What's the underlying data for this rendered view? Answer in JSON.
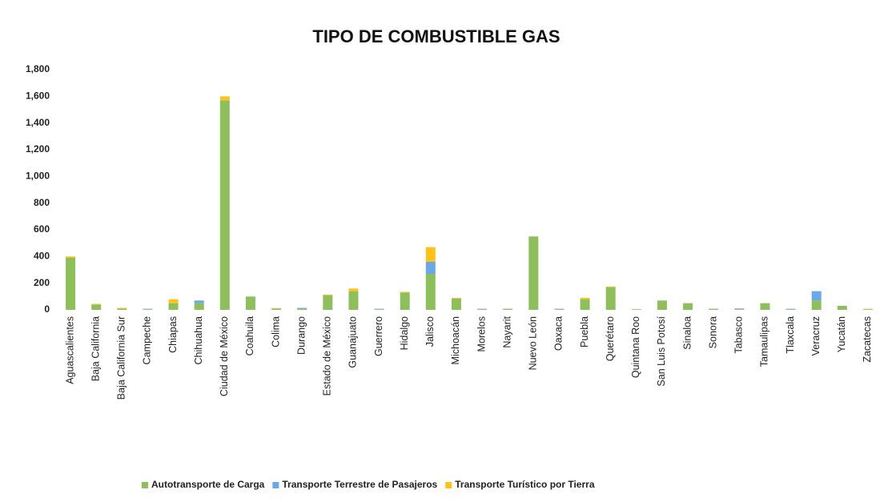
{
  "chart_data": {
    "type": "stacked_bar",
    "title": "TIPO DE COMBUSTIBLE GAS",
    "categories": [
      "Aguascalientes",
      "Baja California",
      "Baja California Sur",
      "Campeche",
      "Chiapas",
      "Chihuahua",
      "Ciudad de México",
      "Coahuila",
      "Colima",
      "Durango",
      "Estado de México",
      "Guanajuato",
      "Guerrero",
      "Hidalgo",
      "Jalisco",
      "Michoacán",
      "Morelos",
      "Nayarit",
      "Nuevo León",
      "Oaxaca",
      "Puebla",
      "Querétaro",
      "Quintana Roo",
      "San Luis Potosí",
      "Sinaloa",
      "Sonora",
      "Tabasco",
      "Tamaulipas",
      "Tlaxcala",
      "Veracruz",
      "Yucatán",
      "Zacatecas"
    ],
    "series": [
      {
        "name": "Autotransporte de Carga",
        "color": "#8dc05a",
        "values": [
          390,
          40,
          10,
          5,
          50,
          50,
          1570,
          100,
          10,
          10,
          110,
          140,
          5,
          130,
          270,
          85,
          5,
          8,
          550,
          5,
          80,
          170,
          5,
          70,
          50,
          8,
          5,
          50,
          5,
          70,
          30,
          5
        ]
      },
      {
        "name": "Transporte Terrestre de Pasajeros",
        "color": "#6aa8e8",
        "values": [
          0,
          0,
          0,
          3,
          0,
          20,
          0,
          0,
          0,
          5,
          0,
          0,
          3,
          0,
          90,
          0,
          3,
          0,
          0,
          3,
          0,
          0,
          0,
          0,
          0,
          0,
          5,
          0,
          3,
          70,
          0,
          0
        ]
      },
      {
        "name": "Transporte Turístico por Tierra",
        "color": "#ffc21a",
        "values": [
          10,
          5,
          5,
          0,
          30,
          0,
          30,
          0,
          3,
          0,
          5,
          20,
          0,
          5,
          110,
          5,
          0,
          0,
          0,
          0,
          10,
          5,
          0,
          0,
          0,
          0,
          0,
          0,
          0,
          0,
          0,
          3
        ]
      }
    ],
    "ylim": [
      0,
      1800
    ],
    "yticks": [
      0,
      200,
      400,
      600,
      800,
      {
        "value": 1000,
        "label": "1,000"
      },
      {
        "value": 1200,
        "label": "1,200"
      },
      {
        "value": 1400,
        "label": "1,400"
      },
      {
        "value": 1600,
        "label": "1,600"
      },
      {
        "value": 1800,
        "label": "1,800"
      }
    ],
    "legend": "bottom"
  }
}
